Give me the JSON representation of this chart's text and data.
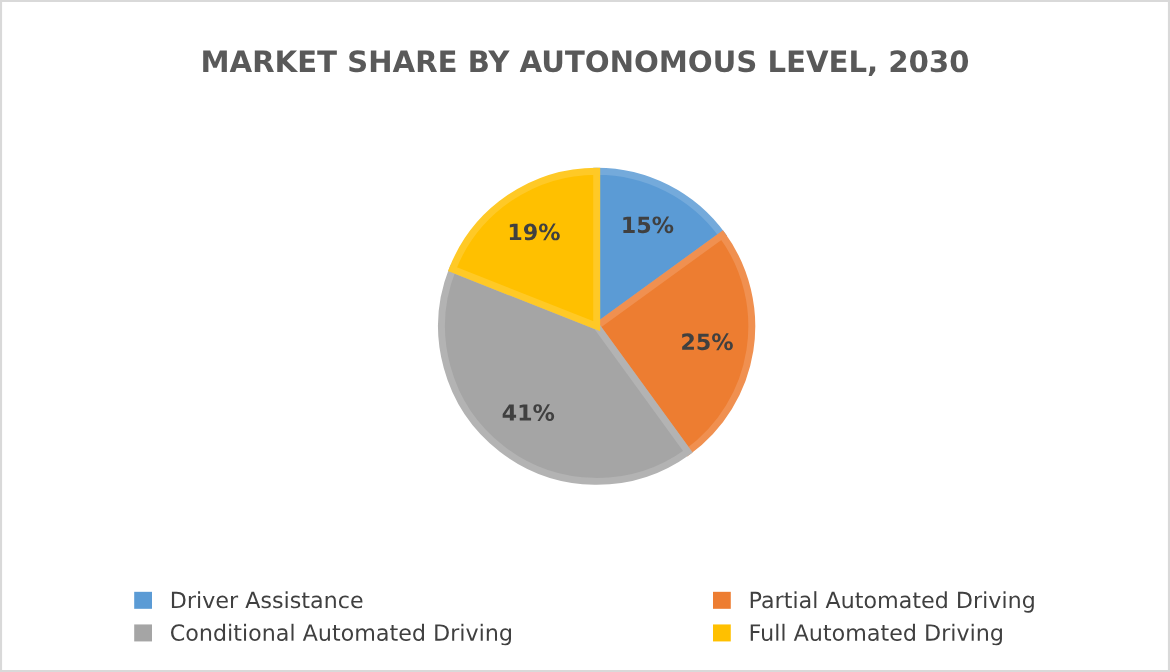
{
  "chart_data": {
    "type": "pie",
    "title": "MARKET SHARE BY AUTONOMOUS LEVEL, 2030",
    "categories": [
      "Driver Assistance",
      "Partial Automated Driving",
      "Conditional Automated Driving",
      "Full Automated Driving"
    ],
    "values": [
      15,
      25,
      41,
      19
    ],
    "colors": [
      "#5b9bd5",
      "#ed7d31",
      "#a5a5a5",
      "#ffc000"
    ],
    "value_labels": [
      "15%",
      "25%",
      "41%",
      "19%"
    ],
    "legend": "bottom"
  }
}
